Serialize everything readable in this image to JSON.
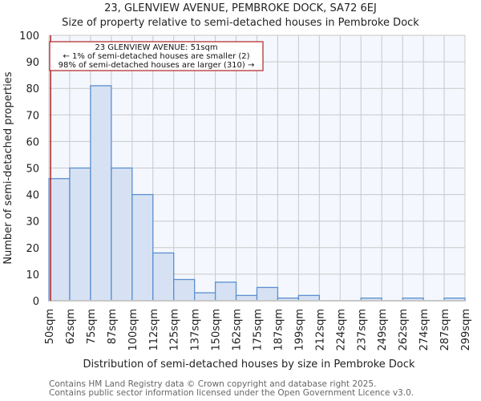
{
  "header": {
    "title": "23, GLENVIEW AVENUE, PEMBROKE DOCK, SA72 6EJ",
    "subtitle": "Size of property relative to semi-detached houses in Pembroke Dock"
  },
  "annotation": {
    "line1": "23 GLENVIEW AVENUE: 51sqm",
    "line2": "← 1% of semi-detached houses are smaller (2)",
    "line3": "98% of semi-detached houses are larger (310) →",
    "marker_value": 51,
    "color": "#b22222"
  },
  "footer": {
    "line1": "Contains HM Land Registry data © Crown copyright and database right 2025.",
    "line2": "Contains public sector information licensed under the Open Government Licence v3.0."
  },
  "colors": {
    "bar_fill": "#d6e2f3",
    "bar_stroke": "#5b8fcf",
    "plot_bg": "#f4f7fd",
    "grid": "#c8c8c8",
    "marker": "#b22222"
  },
  "chart_data": {
    "type": "bar",
    "title": "23, GLENVIEW AVENUE, PEMBROKE DOCK, SA72 6EJ — Size of property relative to semi-detached houses in Pembroke Dock",
    "xlabel": "Distribution of semi-detached houses by size in Pembroke Dock",
    "ylabel": "Number of semi-detached properties",
    "categories": [
      "50sqm",
      "62sqm",
      "75sqm",
      "87sqm",
      "100sqm",
      "112sqm",
      "125sqm",
      "137sqm",
      "150sqm",
      "162sqm",
      "175sqm",
      "187sqm",
      "199sqm",
      "212sqm",
      "224sqm",
      "237sqm",
      "249sqm",
      "262sqm",
      "274sqm",
      "287sqm",
      "299sqm"
    ],
    "values": [
      46,
      50,
      81,
      50,
      40,
      18,
      8,
      3,
      7,
      2,
      5,
      1,
      2,
      0,
      0,
      1,
      0,
      1,
      0,
      1
    ],
    "yticks": [
      0,
      10,
      20,
      30,
      40,
      50,
      60,
      70,
      80,
      90,
      100
    ],
    "ylim": [
      0,
      100
    ],
    "grid": true,
    "marker_line": {
      "x": 51,
      "label": "23 GLENVIEW AVENUE: 51sqm"
    }
  }
}
